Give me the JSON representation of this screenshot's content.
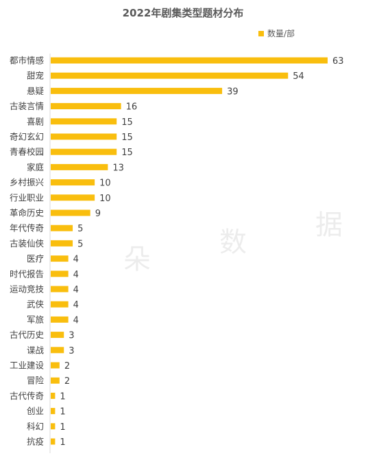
{
  "chart_data": {
    "type": "bar",
    "orientation": "horizontal",
    "title": "2022年剧集类型题材分布",
    "legend": {
      "position": "top-right",
      "label": "数量/部"
    },
    "series": [
      {
        "name": "数量/部",
        "color": "#F9BE0E",
        "values": [
          63,
          54,
          39,
          16,
          15,
          15,
          15,
          13,
          10,
          10,
          9,
          5,
          5,
          4,
          4,
          4,
          4,
          4,
          3,
          3,
          2,
          2,
          1,
          1,
          1,
          1
        ]
      }
    ],
    "categories": [
      "都市情感",
      "甜宠",
      "悬疑",
      "古装言情",
      "喜剧",
      "奇幻玄幻",
      "青春校园",
      "家庭",
      "乡村振兴",
      "行业职业",
      "革命历史",
      "年代传奇",
      "古装仙侠",
      "医疗",
      "时代报告",
      "运动竞技",
      "武侠",
      "军旅",
      "古代历史",
      "谍战",
      "工业建设",
      "冒险",
      "古代传奇",
      "创业",
      "科幻",
      "抗疫"
    ],
    "xlim": [
      0,
      63
    ],
    "grid": false
  },
  "watermark": [
    "朵",
    "数",
    "据"
  ]
}
